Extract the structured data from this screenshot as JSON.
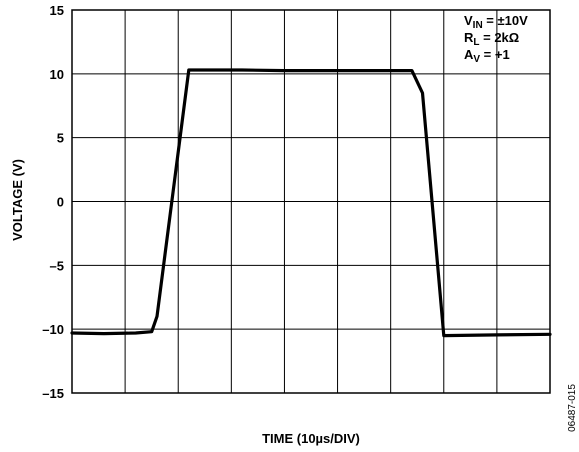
{
  "chart_data": {
    "type": "line",
    "title": "",
    "xlabel": "TIME (10µs/DIV)",
    "ylabel": "VOLTAGE (V)",
    "ylim": [
      -15,
      15
    ],
    "xlim": [
      0,
      90
    ],
    "yticks": [
      15,
      10,
      5,
      0,
      -5,
      -10,
      -15
    ],
    "ytick_labels": [
      "15",
      "10",
      "5",
      "0",
      "–5",
      "–10",
      "–15"
    ],
    "x_divisions": 9,
    "grid": true,
    "annotation": {
      "line1": {
        "main": "V",
        "sub": "IN",
        "rest": " = ±10V"
      },
      "line2": {
        "main": "R",
        "sub": "L",
        "rest": " = 2kΩ"
      },
      "line3": {
        "main": "A",
        "sub": "V",
        "rest": " = +1"
      }
    },
    "series": [
      {
        "x": [
          0,
          6,
          12,
          15,
          16,
          22,
          32,
          40,
          52,
          57,
          64,
          66,
          70,
          80,
          90
        ],
        "y": [
          -10.3,
          -10.35,
          -10.3,
          -10.2,
          -9.0,
          10.3,
          10.3,
          10.25,
          10.25,
          10.25,
          10.25,
          8.5,
          -10.5,
          -10.45,
          -10.4
        ]
      }
    ],
    "colors": {
      "line": "#000000",
      "grid": "#000000",
      "frame": "#000000"
    },
    "figure_id": "06487-015"
  }
}
